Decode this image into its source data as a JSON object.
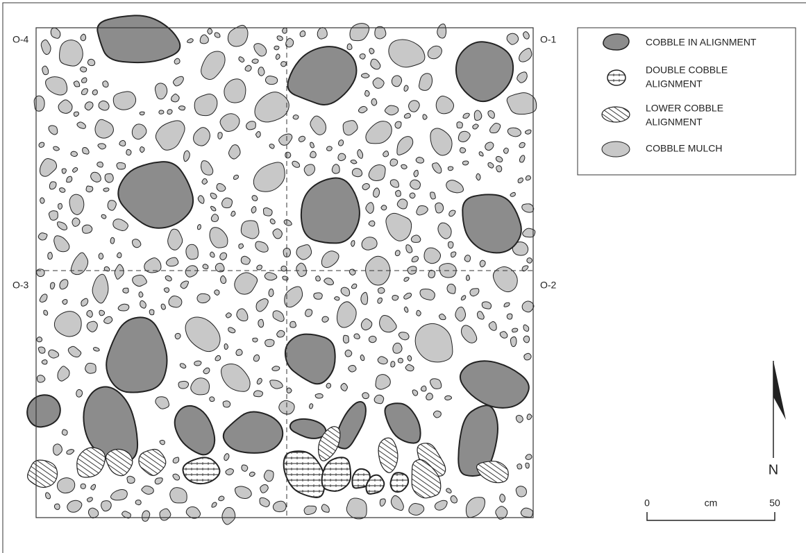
{
  "corner_labels": {
    "northwest": "O-4",
    "northeast": "O-1",
    "southwest": "O-3",
    "southeast": "O-2"
  },
  "legend": {
    "items": [
      {
        "lines": [
          "COBBLE IN ALIGNMENT"
        ]
      },
      {
        "lines": [
          "DOUBLE COBBLE",
          "ALIGNMENT"
        ]
      },
      {
        "lines": [
          "LOWER COBBLE",
          "ALIGNMENT"
        ]
      },
      {
        "lines": [
          "COBBLE MULCH"
        ]
      }
    ]
  },
  "scale": {
    "start": 0,
    "unit": "cm",
    "end": 50
  },
  "north": "N"
}
